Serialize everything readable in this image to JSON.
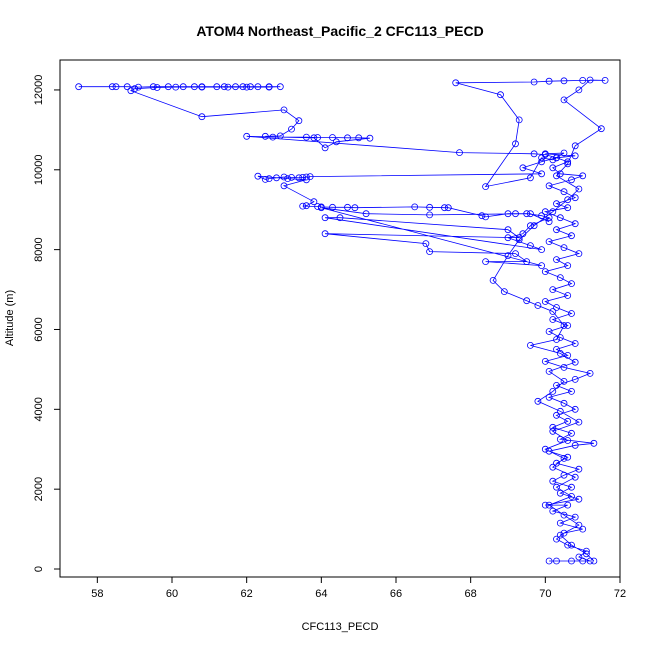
{
  "chart_data": {
    "type": "scatter",
    "title": "ATOM4 Northeast_Pacific_2 CFC113_PECD",
    "xlabel": "CFC113_PECD",
    "ylabel": "Altitude (m)",
    "xlim": [
      57.0,
      72.0
    ],
    "ylim": [
      -200,
      12750
    ],
    "xticks": [
      58,
      60,
      62,
      64,
      66,
      68,
      70,
      72
    ],
    "yticks": [
      0,
      2000,
      4000,
      6000,
      8000,
      10000,
      12000
    ],
    "grid": false,
    "series": [
      {
        "color": "#0000ff",
        "marker": "open-circle",
        "line": true,
        "points": [
          [
            70.1,
            200
          ],
          [
            70.3,
            200
          ],
          [
            70.7,
            200
          ],
          [
            71.0,
            200
          ],
          [
            71.2,
            200
          ],
          [
            70.9,
            300
          ],
          [
            71.1,
            450
          ],
          [
            70.6,
            600
          ],
          [
            70.3,
            750
          ],
          [
            70.5,
            900
          ],
          [
            71.0,
            1000
          ],
          [
            70.4,
            1150
          ],
          [
            70.8,
            1300
          ],
          [
            70.2,
            1450
          ],
          [
            70.6,
            1600
          ],
          [
            70.0,
            1600
          ],
          [
            70.9,
            1750
          ],
          [
            70.4,
            1900
          ],
          [
            70.7,
            2050
          ],
          [
            70.2,
            2200
          ],
          [
            70.5,
            2350
          ],
          [
            70.9,
            2500
          ],
          [
            70.3,
            2650
          ],
          [
            70.6,
            2800
          ],
          [
            70.1,
            2950
          ],
          [
            70.8,
            3100
          ],
          [
            71.3,
            3150
          ],
          [
            70.4,
            3250
          ],
          [
            70.7,
            3400
          ],
          [
            70.2,
            3550
          ],
          [
            70.6,
            3700
          ],
          [
            70.3,
            3850
          ],
          [
            70.8,
            4000
          ],
          [
            70.5,
            4150
          ],
          [
            70.1,
            4300
          ],
          [
            70.7,
            4450
          ],
          [
            70.3,
            4600
          ],
          [
            70.8,
            4750
          ],
          [
            71.2,
            4900
          ],
          [
            70.5,
            5050
          ],
          [
            70.0,
            5200
          ],
          [
            70.6,
            5350
          ],
          [
            70.3,
            5500
          ],
          [
            70.8,
            5650
          ],
          [
            70.4,
            5800
          ],
          [
            70.1,
            5950
          ],
          [
            70.6,
            6100
          ],
          [
            70.2,
            6250
          ],
          [
            70.7,
            6400
          ],
          [
            70.3,
            6550
          ],
          [
            70.0,
            6700
          ],
          [
            70.6,
            6850
          ],
          [
            70.2,
            7000
          ],
          [
            70.7,
            7150
          ],
          [
            70.4,
            7300
          ],
          [
            70.0,
            7450
          ],
          [
            70.6,
            7600
          ],
          [
            70.3,
            7750
          ],
          [
            70.9,
            7900
          ],
          [
            70.5,
            8050
          ],
          [
            70.1,
            8200
          ],
          [
            70.7,
            8350
          ],
          [
            70.3,
            8500
          ],
          [
            70.8,
            8650
          ],
          [
            70.4,
            8800
          ],
          [
            70.0,
            8950
          ],
          [
            70.6,
            9050
          ],
          [
            70.3,
            9150
          ],
          [
            70.8,
            9300
          ],
          [
            70.5,
            9450
          ],
          [
            70.1,
            9600
          ],
          [
            70.7,
            9750
          ],
          [
            71.0,
            9850
          ],
          [
            70.4,
            9900
          ],
          [
            70.2,
            10050
          ],
          [
            70.6,
            10200
          ],
          [
            70.3,
            10300
          ],
          [
            70.8,
            10350
          ],
          [
            70.0,
            10400
          ],
          [
            70.5,
            10420
          ],
          [
            70.2,
            10250
          ],
          [
            69.9,
            10300
          ],
          [
            69.6,
            9800
          ],
          [
            68.4,
            9580
          ],
          [
            69.2,
            10650
          ],
          [
            69.3,
            11250
          ],
          [
            68.8,
            11880
          ],
          [
            67.6,
            12180
          ],
          [
            69.7,
            12200
          ],
          [
            70.1,
            12220
          ],
          [
            70.5,
            12230
          ],
          [
            71.0,
            12240
          ],
          [
            71.6,
            12240
          ],
          [
            71.2,
            12250
          ],
          [
            70.9,
            12000
          ],
          [
            70.5,
            11750
          ],
          [
            71.5,
            11030
          ],
          [
            70.8,
            10600
          ],
          [
            70.6,
            10150
          ],
          [
            70.3,
            9850
          ],
          [
            70.9,
            9520
          ],
          [
            70.6,
            9250
          ],
          [
            70.2,
            8950
          ],
          [
            69.7,
            8600
          ],
          [
            69.3,
            8250
          ],
          [
            69.0,
            7850
          ],
          [
            68.6,
            7230
          ],
          [
            68.9,
            6950
          ],
          [
            69.5,
            6720
          ],
          [
            69.8,
            6600
          ],
          [
            70.2,
            6450
          ],
          [
            70.5,
            6100
          ],
          [
            70.3,
            5750
          ],
          [
            69.6,
            5600
          ],
          [
            70.4,
            5400
          ],
          [
            70.8,
            5180
          ],
          [
            70.1,
            4950
          ],
          [
            70.5,
            4700
          ],
          [
            70.2,
            4450
          ],
          [
            69.8,
            4200
          ],
          [
            70.4,
            3950
          ],
          [
            70.9,
            3680
          ],
          [
            70.2,
            3450
          ],
          [
            70.6,
            3220
          ],
          [
            70.0,
            3000
          ],
          [
            70.5,
            2770
          ],
          [
            70.2,
            2550
          ],
          [
            70.8,
            2300
          ],
          [
            70.3,
            2050
          ],
          [
            70.7,
            1820
          ],
          [
            70.1,
            1600
          ],
          [
            70.5,
            1350
          ],
          [
            70.9,
            1100
          ],
          [
            70.4,
            850
          ],
          [
            70.7,
            600
          ],
          [
            71.1,
            380
          ],
          [
            71.3,
            200
          ]
        ]
      },
      {
        "color": "#0000ff",
        "marker": "open-circle",
        "line": true,
        "points": [
          [
            57.5,
            12080
          ],
          [
            58.4,
            12080
          ],
          [
            58.5,
            12080
          ],
          [
            58.8,
            12080
          ],
          [
            59.1,
            12070
          ],
          [
            59.5,
            12080
          ],
          [
            59.9,
            12080
          ],
          [
            60.3,
            12080
          ],
          [
            60.6,
            12080
          ],
          [
            60.8,
            12080
          ],
          [
            61.2,
            12080
          ],
          [
            61.4,
            12080
          ],
          [
            61.7,
            12080
          ],
          [
            61.9,
            12080
          ],
          [
            62.1,
            12080
          ],
          [
            62.3,
            12080
          ],
          [
            62.6,
            12080
          ],
          [
            62.9,
            12080
          ],
          [
            62.6,
            12070
          ],
          [
            62.0,
            12070
          ],
          [
            61.5,
            12070
          ],
          [
            60.8,
            12070
          ],
          [
            60.1,
            12070
          ],
          [
            59.6,
            12060
          ],
          [
            59.0,
            12030
          ],
          [
            58.9,
            11980
          ],
          [
            60.8,
            11330
          ],
          [
            63.0,
            11500
          ],
          [
            63.4,
            11230
          ],
          [
            63.2,
            11020
          ],
          [
            62.9,
            10850
          ],
          [
            62.5,
            10840
          ],
          [
            62.7,
            10820
          ],
          [
            63.6,
            10820
          ],
          [
            63.9,
            10810
          ],
          [
            64.3,
            10810
          ],
          [
            64.7,
            10800
          ],
          [
            65.0,
            10800
          ],
          [
            65.3,
            10790
          ],
          [
            64.4,
            10700
          ],
          [
            64.1,
            10550
          ],
          [
            63.8,
            10800
          ],
          [
            62.0,
            10840
          ],
          [
            67.7,
            10430
          ],
          [
            69.7,
            10400
          ],
          [
            70.0,
            10380
          ],
          [
            70.3,
            10300
          ],
          [
            69.9,
            10200
          ],
          [
            69.4,
            10050
          ],
          [
            69.9,
            9900
          ],
          [
            63.7,
            9830
          ],
          [
            63.6,
            9820
          ],
          [
            63.5,
            9810
          ],
          [
            63.4,
            9800
          ],
          [
            63.2,
            9810
          ],
          [
            63.0,
            9820
          ],
          [
            62.8,
            9800
          ],
          [
            62.6,
            9780
          ],
          [
            62.5,
            9760
          ],
          [
            62.3,
            9840
          ],
          [
            63.1,
            9780
          ],
          [
            63.6,
            9750
          ],
          [
            63.0,
            9600
          ],
          [
            63.8,
            9200
          ],
          [
            63.6,
            9100
          ],
          [
            63.5,
            9090
          ],
          [
            63.9,
            9080
          ],
          [
            64.0,
            9070
          ],
          [
            64.3,
            9060
          ],
          [
            64.7,
            9060
          ],
          [
            64.9,
            9050
          ],
          [
            66.5,
            9070
          ],
          [
            66.9,
            9060
          ],
          [
            67.3,
            9050
          ],
          [
            67.4,
            9050
          ],
          [
            68.3,
            8850
          ],
          [
            68.4,
            8820
          ],
          [
            69.0,
            8900
          ],
          [
            69.2,
            8900
          ],
          [
            69.5,
            8900
          ],
          [
            69.9,
            8850
          ],
          [
            70.1,
            8800
          ],
          [
            69.6,
            8600
          ],
          [
            69.4,
            8400
          ],
          [
            69.0,
            8300
          ],
          [
            69.6,
            8100
          ],
          [
            69.9,
            8000
          ],
          [
            64.1,
            8800
          ],
          [
            64.5,
            8800
          ],
          [
            69.0,
            8500
          ],
          [
            69.3,
            8300
          ],
          [
            64.1,
            8400
          ],
          [
            66.8,
            8150
          ],
          [
            66.9,
            7950
          ],
          [
            69.2,
            7900
          ],
          [
            69.5,
            7700
          ],
          [
            68.4,
            7700
          ],
          [
            69.9,
            7600
          ],
          [
            64.0,
            9050
          ],
          [
            65.2,
            8900
          ],
          [
            66.9,
            8870
          ],
          [
            69.6,
            8900
          ],
          [
            70.1,
            8700
          ]
        ]
      }
    ]
  }
}
